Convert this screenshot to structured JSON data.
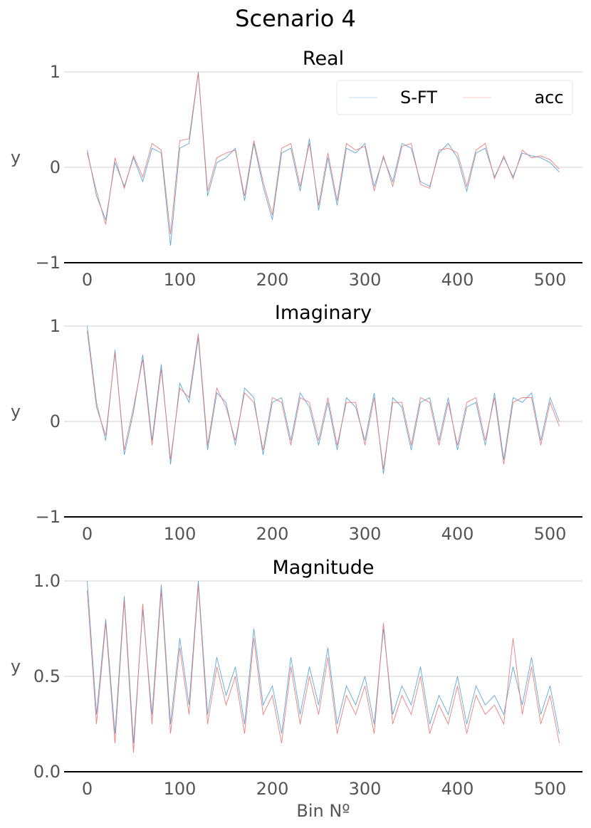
{
  "figure": {
    "title": "Scenario 4"
  },
  "legend": {
    "location": "upper right",
    "entries": [
      "S-FT",
      "acc"
    ]
  },
  "colors": {
    "S-FT": "#4a9fd4",
    "acc": "#e8716e",
    "grid": "#d9d9d9",
    "axis": "#000000",
    "tick_text": "#555555"
  },
  "chart_data": [
    {
      "type": "line",
      "title": "Real",
      "xlabel": "",
      "ylabel": "y",
      "xlim": [
        -25,
        535
      ],
      "ylim": [
        -1,
        1
      ],
      "xticks": [
        0,
        100,
        200,
        300,
        400,
        500
      ],
      "yticks": [
        -1,
        0,
        1
      ],
      "ytick_labels": [
        "−1",
        "0",
        "1"
      ],
      "grid": true,
      "legend": true,
      "series": [
        {
          "name": "S-FT",
          "x_start": 0,
          "x_step": 10,
          "values": [
            0.18,
            -0.3,
            -0.55,
            0.05,
            -0.2,
            0.1,
            -0.15,
            0.2,
            0.15,
            -0.82,
            0.2,
            0.25,
            0.99,
            -0.3,
            0.05,
            0.1,
            0.2,
            -0.35,
            0.25,
            -0.2,
            -0.55,
            0.15,
            0.2,
            -0.25,
            0.3,
            -0.45,
            0.1,
            -0.4,
            0.2,
            0.15,
            0.25,
            -0.2,
            0.1,
            -0.15,
            0.25,
            0.2,
            -0.15,
            -0.2,
            0.15,
            0.25,
            0.1,
            -0.25,
            0.15,
            0.2,
            -0.1,
            0.1,
            -0.1,
            0.15,
            0.12,
            0.1,
            0.05,
            -0.05
          ]
        },
        {
          "name": "acc",
          "x_start": 0,
          "x_step": 10,
          "values": [
            0.15,
            -0.25,
            -0.6,
            0.1,
            -0.22,
            0.12,
            -0.1,
            0.25,
            0.18,
            -0.7,
            0.28,
            0.3,
            1.0,
            -0.25,
            0.1,
            0.15,
            0.18,
            -0.3,
            0.28,
            -0.15,
            -0.5,
            0.2,
            0.25,
            -0.2,
            0.25,
            -0.4,
            0.15,
            -0.35,
            0.25,
            0.18,
            0.22,
            -0.25,
            0.12,
            -0.2,
            0.22,
            0.25,
            -0.18,
            -0.22,
            0.18,
            0.2,
            0.15,
            -0.2,
            0.18,
            0.25,
            -0.12,
            0.12,
            -0.12,
            0.18,
            0.1,
            0.12,
            0.08,
            -0.02
          ]
        }
      ]
    },
    {
      "type": "line",
      "title": "Imaginary",
      "xlabel": "",
      "ylabel": "y",
      "xlim": [
        -25,
        535
      ],
      "ylim": [
        -1,
        1
      ],
      "xticks": [
        0,
        100,
        200,
        300,
        400,
        500
      ],
      "yticks": [
        -1,
        0,
        1
      ],
      "ytick_labels": [
        "−1",
        "0",
        "1"
      ],
      "grid": true,
      "legend": false,
      "series": [
        {
          "name": "S-FT",
          "x_start": 0,
          "x_step": 10,
          "values": [
            1.0,
            0.2,
            -0.2,
            0.75,
            -0.35,
            0.1,
            0.7,
            -0.2,
            0.6,
            -0.45,
            0.4,
            0.2,
            0.88,
            -0.3,
            0.3,
            0.2,
            -0.25,
            0.35,
            0.25,
            -0.35,
            0.2,
            0.25,
            -0.2,
            0.3,
            0.15,
            -0.25,
            0.2,
            -0.3,
            0.25,
            0.15,
            -0.2,
            0.3,
            -0.55,
            0.25,
            0.15,
            -0.3,
            0.2,
            0.25,
            -0.2,
            0.25,
            -0.3,
            0.15,
            0.2,
            -0.25,
            0.3,
            -0.4,
            0.25,
            0.2,
            0.3,
            -0.2,
            0.25,
            0.0
          ]
        },
        {
          "name": "acc",
          "x_start": 0,
          "x_step": 10,
          "values": [
            0.95,
            0.15,
            -0.15,
            0.72,
            -0.3,
            0.15,
            0.65,
            -0.25,
            0.55,
            -0.4,
            0.35,
            0.25,
            0.92,
            -0.25,
            0.35,
            0.15,
            -0.2,
            0.3,
            0.2,
            -0.3,
            0.25,
            0.2,
            -0.25,
            0.25,
            0.2,
            -0.2,
            0.25,
            -0.25,
            0.2,
            0.2,
            -0.25,
            0.25,
            -0.5,
            0.2,
            0.2,
            -0.25,
            0.25,
            0.2,
            -0.25,
            0.2,
            -0.25,
            0.2,
            0.25,
            -0.2,
            0.25,
            -0.45,
            0.2,
            0.25,
            0.25,
            -0.25,
            0.2,
            -0.05
          ]
        }
      ]
    },
    {
      "type": "line",
      "title": "Magnitude",
      "xlabel": "Bin Nº",
      "ylabel": "y",
      "xlim": [
        -25,
        535
      ],
      "ylim": [
        0,
        1
      ],
      "xticks": [
        0,
        100,
        200,
        300,
        400,
        500
      ],
      "yticks": [
        0,
        0.5,
        1
      ],
      "ytick_labels": [
        "0.0",
        "0.5",
        "1.0"
      ],
      "grid": true,
      "legend": false,
      "series": [
        {
          "name": "S-FT",
          "x_start": 0,
          "x_step": 10,
          "values": [
            1.0,
            0.3,
            0.8,
            0.2,
            0.92,
            0.15,
            0.85,
            0.3,
            0.98,
            0.25,
            0.7,
            0.35,
            1.0,
            0.3,
            0.6,
            0.4,
            0.55,
            0.25,
            0.75,
            0.35,
            0.45,
            0.2,
            0.6,
            0.3,
            0.55,
            0.35,
            0.65,
            0.25,
            0.45,
            0.35,
            0.5,
            0.25,
            0.75,
            0.3,
            0.45,
            0.35,
            0.55,
            0.25,
            0.4,
            0.3,
            0.5,
            0.25,
            0.45,
            0.35,
            0.4,
            0.3,
            0.55,
            0.35,
            0.6,
            0.3,
            0.45,
            0.2
          ]
        },
        {
          "name": "acc",
          "x_start": 0,
          "x_step": 10,
          "values": [
            0.95,
            0.25,
            0.78,
            0.15,
            0.9,
            0.1,
            0.88,
            0.25,
            0.95,
            0.2,
            0.65,
            0.3,
            0.98,
            0.25,
            0.55,
            0.35,
            0.5,
            0.2,
            0.7,
            0.3,
            0.4,
            0.15,
            0.55,
            0.25,
            0.5,
            0.3,
            0.6,
            0.2,
            0.4,
            0.3,
            0.45,
            0.2,
            0.78,
            0.25,
            0.4,
            0.3,
            0.5,
            0.2,
            0.35,
            0.25,
            0.45,
            0.2,
            0.4,
            0.3,
            0.35,
            0.25,
            0.7,
            0.3,
            0.55,
            0.25,
            0.4,
            0.15
          ]
        }
      ]
    }
  ]
}
